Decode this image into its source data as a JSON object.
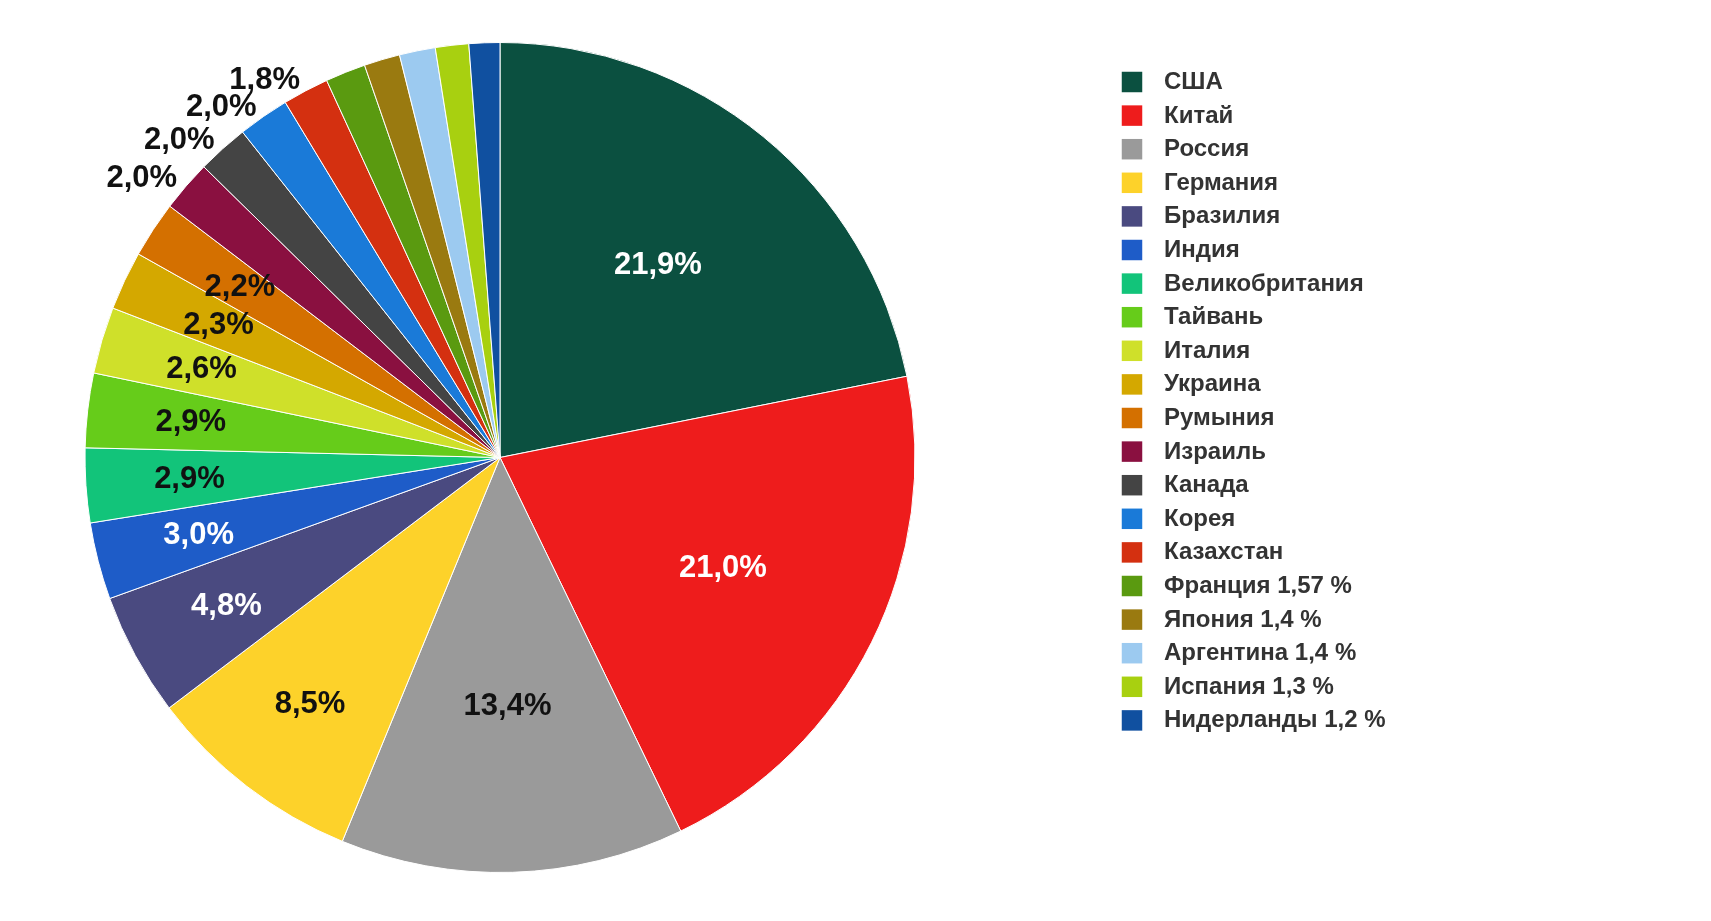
{
  "chart_data": {
    "type": "pie",
    "legend": "right",
    "categories": [
      "США",
      "Китай",
      "Россия",
      "Германия",
      "Бразилия",
      "Индия",
      "Великобритания",
      "Тайвань",
      "Италия",
      "Украина",
      "Румыния",
      "Израиль",
      "Канада",
      "Корея",
      "Казахстан",
      "Франция 1,57 %",
      "Япония 1,4 %",
      "Аргентина 1,4 %",
      "Испания 1,3 %",
      "Нидерланды 1,2 %"
    ],
    "values": [
      21.9,
      21.0,
      13.4,
      8.5,
      4.8,
      3.0,
      2.9,
      2.9,
      2.6,
      2.3,
      2.2,
      2.0,
      2.0,
      2.0,
      1.8,
      1.57,
      1.4,
      1.4,
      1.3,
      1.2
    ],
    "value_labels": [
      "21,9%",
      "21,0%",
      "13,4%",
      "8,5%",
      "4,8%",
      "3,0%",
      "2,9%",
      "2,9%",
      "2,6%",
      "2,3%",
      "2,2%",
      "2,0%",
      "2,0%",
      "2,0%",
      "1,8%",
      null,
      null,
      null,
      null,
      null
    ],
    "colors": [
      "#0b5040",
      "#ee1c1c",
      "#9a9a9a",
      "#fdd22a",
      "#4a4a80",
      "#1e5cc8",
      "#12c47a",
      "#66cc1a",
      "#cfe02a",
      "#d4a800",
      "#d47000",
      "#8a1040",
      "#444444",
      "#1a7ad8",
      "#d43010",
      "#5a9a10",
      "#9a7a10",
      "#9ccaf0",
      "#a8d010",
      "#1050a0"
    ]
  }
}
